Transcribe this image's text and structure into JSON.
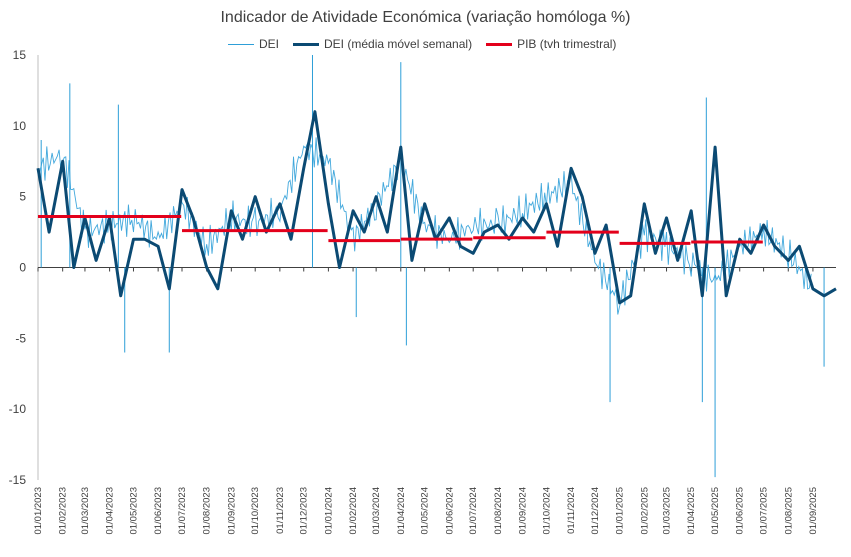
{
  "chart_data": {
    "type": "line",
    "title": "Indicador de Atividade Económica (variação homóloga %)",
    "xlabel": "",
    "ylabel": "",
    "ylim": [
      -15,
      15
    ],
    "yticks": [
      15,
      10,
      5,
      0,
      -5,
      -10,
      -15
    ],
    "x_date_range": [
      "01/01/2023",
      "30/09/2025"
    ],
    "x_tick_labels": [
      "01/01/2023",
      "01/02/2023",
      "01/03/2023",
      "01/04/2023",
      "01/05/2023",
      "01/06/2023",
      "01/07/2023",
      "01/08/2023",
      "01/09/2023",
      "01/10/2023",
      "01/11/2023",
      "01/12/2023",
      "01/01/2024",
      "01/02/2024",
      "01/03/2024",
      "01/04/2024",
      "01/05/2024",
      "01/06/2024",
      "01/07/2024",
      "01/08/2024",
      "01/09/2024",
      "01/10/2024",
      "01/11/2024",
      "01/12/2024",
      "01/01/2025",
      "01/02/2025",
      "01/03/2025",
      "01/04/2025",
      "01/05/2025",
      "01/06/2025",
      "01/07/2025",
      "01/08/2025",
      "01/09/2025"
    ],
    "legend_position": "top",
    "grid": false,
    "series": [
      {
        "name": "DEI",
        "color": "#2e9fd8",
        "style": "thin",
        "x": [
          "01/01/2023",
          "01/02/2023",
          "01/03/2023",
          "01/04/2023",
          "01/05/2023",
          "01/06/2023",
          "01/07/2023",
          "01/08/2023",
          "01/09/2023",
          "01/10/2023",
          "01/11/2023",
          "01/12/2023",
          "01/01/2024",
          "01/02/2024",
          "01/03/2024",
          "01/04/2024",
          "01/05/2024",
          "01/06/2024",
          "01/07/2024",
          "01/08/2024",
          "01/09/2024",
          "01/10/2024",
          "01/11/2024",
          "01/12/2024",
          "01/01/2025",
          "01/02/2025",
          "01/03/2025",
          "01/04/2025",
          "01/05/2025",
          "01/06/2025",
          "01/07/2025",
          "01/08/2025",
          "01/09/2025"
        ],
        "values": [
          7.0,
          8.0,
          2.5,
          3.0,
          3.5,
          2.0,
          4.5,
          1.5,
          3.5,
          3.0,
          4.0,
          8.5,
          7.5,
          2.0,
          4.5,
          7.5,
          3.0,
          2.0,
          3.0,
          3.0,
          4.0,
          5.0,
          6.0,
          0.5,
          -2.5,
          2.5,
          1.5,
          0.5,
          -1.0,
          1.5,
          2.5,
          1.0,
          -1.5
        ],
        "extremes": [
          {
            "x": "05/01/2023",
            "value": 9.0
          },
          {
            "x": "10/02/2023",
            "value": 13.0
          },
          {
            "x": "12/04/2023",
            "value": 11.5
          },
          {
            "x": "20/04/2023",
            "value": -6.0
          },
          {
            "x": "15/06/2023",
            "value": -6.0
          },
          {
            "x": "12/12/2023",
            "value": 15.0
          },
          {
            "x": "05/02/2024",
            "value": -3.5
          },
          {
            "x": "01/04/2024",
            "value": 14.5
          },
          {
            "x": "08/04/2024",
            "value": -5.5
          },
          {
            "x": "20/12/2024",
            "value": -9.5
          },
          {
            "x": "15/04/2025",
            "value": -9.5
          },
          {
            "x": "20/04/2025",
            "value": 12.0
          },
          {
            "x": "01/05/2025",
            "value": -14.8
          },
          {
            "x": "15/09/2025",
            "value": -7.0
          }
        ]
      },
      {
        "name": "DEI (média móvel semanal)",
        "color": "#0b4a73",
        "style": "thick",
        "x": [
          "01/01/2023",
          "15/01/2023",
          "01/02/2023",
          "15/02/2023",
          "01/03/2023",
          "15/03/2023",
          "01/04/2023",
          "15/04/2023",
          "01/05/2023",
          "15/05/2023",
          "01/06/2023",
          "15/06/2023",
          "01/07/2023",
          "15/07/2023",
          "01/08/2023",
          "15/08/2023",
          "01/09/2023",
          "15/09/2023",
          "01/10/2023",
          "15/10/2023",
          "01/11/2023",
          "15/11/2023",
          "01/12/2023",
          "15/12/2023",
          "01/01/2024",
          "15/01/2024",
          "01/02/2024",
          "15/02/2024",
          "01/03/2024",
          "15/03/2024",
          "01/04/2024",
          "15/04/2024",
          "01/05/2024",
          "15/05/2024",
          "01/06/2024",
          "15/06/2024",
          "01/07/2024",
          "15/07/2024",
          "01/08/2024",
          "15/08/2024",
          "01/09/2024",
          "15/09/2024",
          "01/10/2024",
          "15/10/2024",
          "01/11/2024",
          "15/11/2024",
          "01/12/2024",
          "15/12/2024",
          "01/01/2025",
          "15/01/2025",
          "01/02/2025",
          "15/02/2025",
          "01/03/2025",
          "15/03/2025",
          "01/04/2025",
          "15/04/2025",
          "01/05/2025",
          "15/05/2025",
          "01/06/2025",
          "15/06/2025",
          "01/07/2025",
          "15/07/2025",
          "01/08/2025",
          "15/08/2025",
          "01/09/2025",
          "15/09/2025",
          "30/09/2025"
        ],
        "values": [
          7.0,
          2.5,
          7.5,
          0.0,
          3.5,
          0.5,
          3.5,
          -2.0,
          2.0,
          2.0,
          1.5,
          -1.5,
          5.5,
          3.5,
          0.0,
          -1.5,
          4.0,
          2.0,
          5.0,
          2.5,
          4.5,
          2.0,
          7.0,
          11.0,
          4.5,
          0.0,
          4.0,
          2.5,
          5.0,
          2.5,
          8.5,
          0.5,
          4.5,
          2.0,
          3.5,
          1.5,
          1.0,
          2.5,
          3.0,
          2.0,
          3.5,
          2.5,
          4.5,
          1.5,
          7.0,
          5.0,
          1.0,
          3.0,
          -2.5,
          -2.0,
          4.5,
          1.0,
          3.5,
          0.5,
          4.0,
          -2.0,
          8.5,
          -2.0,
          2.0,
          1.0,
          3.0,
          1.5,
          0.5,
          1.5,
          -1.5,
          -2.0,
          -1.5
        ]
      },
      {
        "name": "PIB (tvh trimestral)",
        "color": "#e3001b",
        "style": "step",
        "quarters": [
          {
            "start": "01/01/2023",
            "end": "30/06/2023",
            "value": 3.6
          },
          {
            "start": "01/07/2023",
            "end": "31/12/2023",
            "value": 2.6
          },
          {
            "start": "01/01/2024",
            "end": "31/03/2024",
            "value": 1.9
          },
          {
            "start": "01/04/2024",
            "end": "30/06/2024",
            "value": 2.0
          },
          {
            "start": "01/07/2024",
            "end": "30/09/2024",
            "value": 2.1
          },
          {
            "start": "01/10/2024",
            "end": "31/12/2024",
            "value": 2.5
          },
          {
            "start": "01/01/2025",
            "end": "31/03/2025",
            "value": 1.7
          },
          {
            "start": "01/04/2025",
            "end": "30/06/2025",
            "value": 1.8
          }
        ]
      }
    ]
  }
}
